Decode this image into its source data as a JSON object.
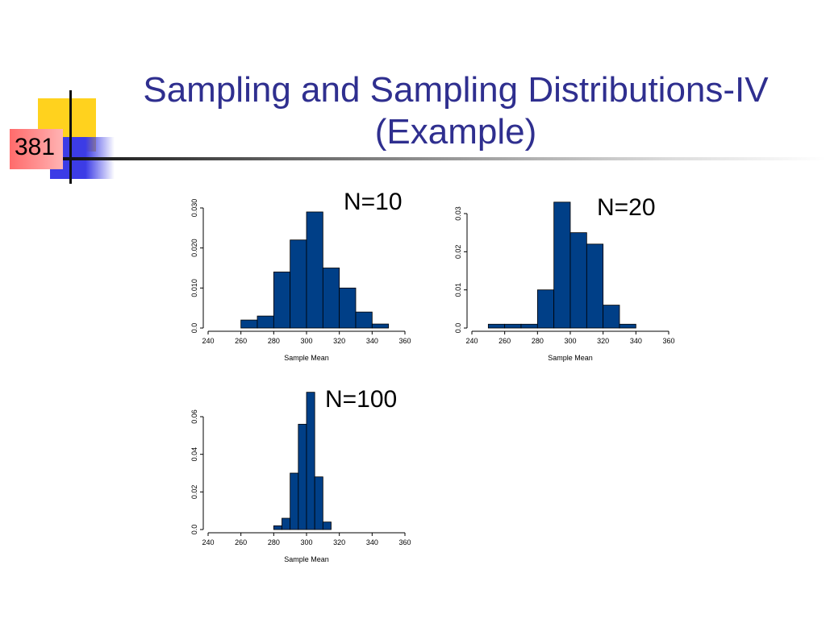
{
  "slide": {
    "number": "381",
    "title_line1": "Sampling and Sampling Distributions-IV",
    "title_line2": "(Example)"
  },
  "chart_data": [
    {
      "type": "bar",
      "label": "N=10",
      "xlabel": "Sample Mean",
      "ylabel": "",
      "xlim": [
        240,
        360
      ],
      "ylim": [
        0,
        0.03
      ],
      "xticks": [
        "240",
        "260",
        "280",
        "300",
        "320",
        "340",
        "360"
      ],
      "yticks": [
        "0.0",
        "0.010",
        "0.020",
        "0.030"
      ],
      "bin_edges": [
        260,
        270,
        280,
        290,
        300,
        310,
        320,
        330,
        340,
        350
      ],
      "values": [
        0.002,
        0.003,
        0.014,
        0.022,
        0.029,
        0.015,
        0.01,
        0.004,
        0.001
      ],
      "bar_color": "#003f87"
    },
    {
      "type": "bar",
      "label": "N=20",
      "xlabel": "Sample Mean",
      "ylabel": "",
      "xlim": [
        240,
        360
      ],
      "ylim": [
        0,
        0.03
      ],
      "xticks": [
        "240",
        "260",
        "280",
        "300",
        "320",
        "340",
        "360"
      ],
      "yticks": [
        "0.0",
        "0.01",
        "0.02",
        "0.03"
      ],
      "bin_edges": [
        250,
        260,
        270,
        280,
        290,
        300,
        310,
        320,
        330,
        340
      ],
      "values": [
        0.001,
        0.001,
        0.001,
        0.01,
        0.033,
        0.025,
        0.022,
        0.006,
        0.001
      ],
      "bar_color": "#003f87"
    },
    {
      "type": "bar",
      "label": "N=100",
      "xlabel": "Sample Mean",
      "ylabel": "",
      "xlim": [
        240,
        360
      ],
      "ylim": [
        0,
        0.06
      ],
      "xticks": [
        "240",
        "260",
        "280",
        "300",
        "320",
        "340",
        "360"
      ],
      "yticks": [
        "0.0",
        "0.02",
        "0.04",
        "0.06"
      ],
      "bin_edges": [
        280,
        285,
        290,
        295,
        300,
        305,
        310,
        315
      ],
      "values": [
        0.002,
        0.006,
        0.03,
        0.056,
        0.073,
        0.028,
        0.004
      ],
      "bar_color": "#003f87"
    }
  ]
}
